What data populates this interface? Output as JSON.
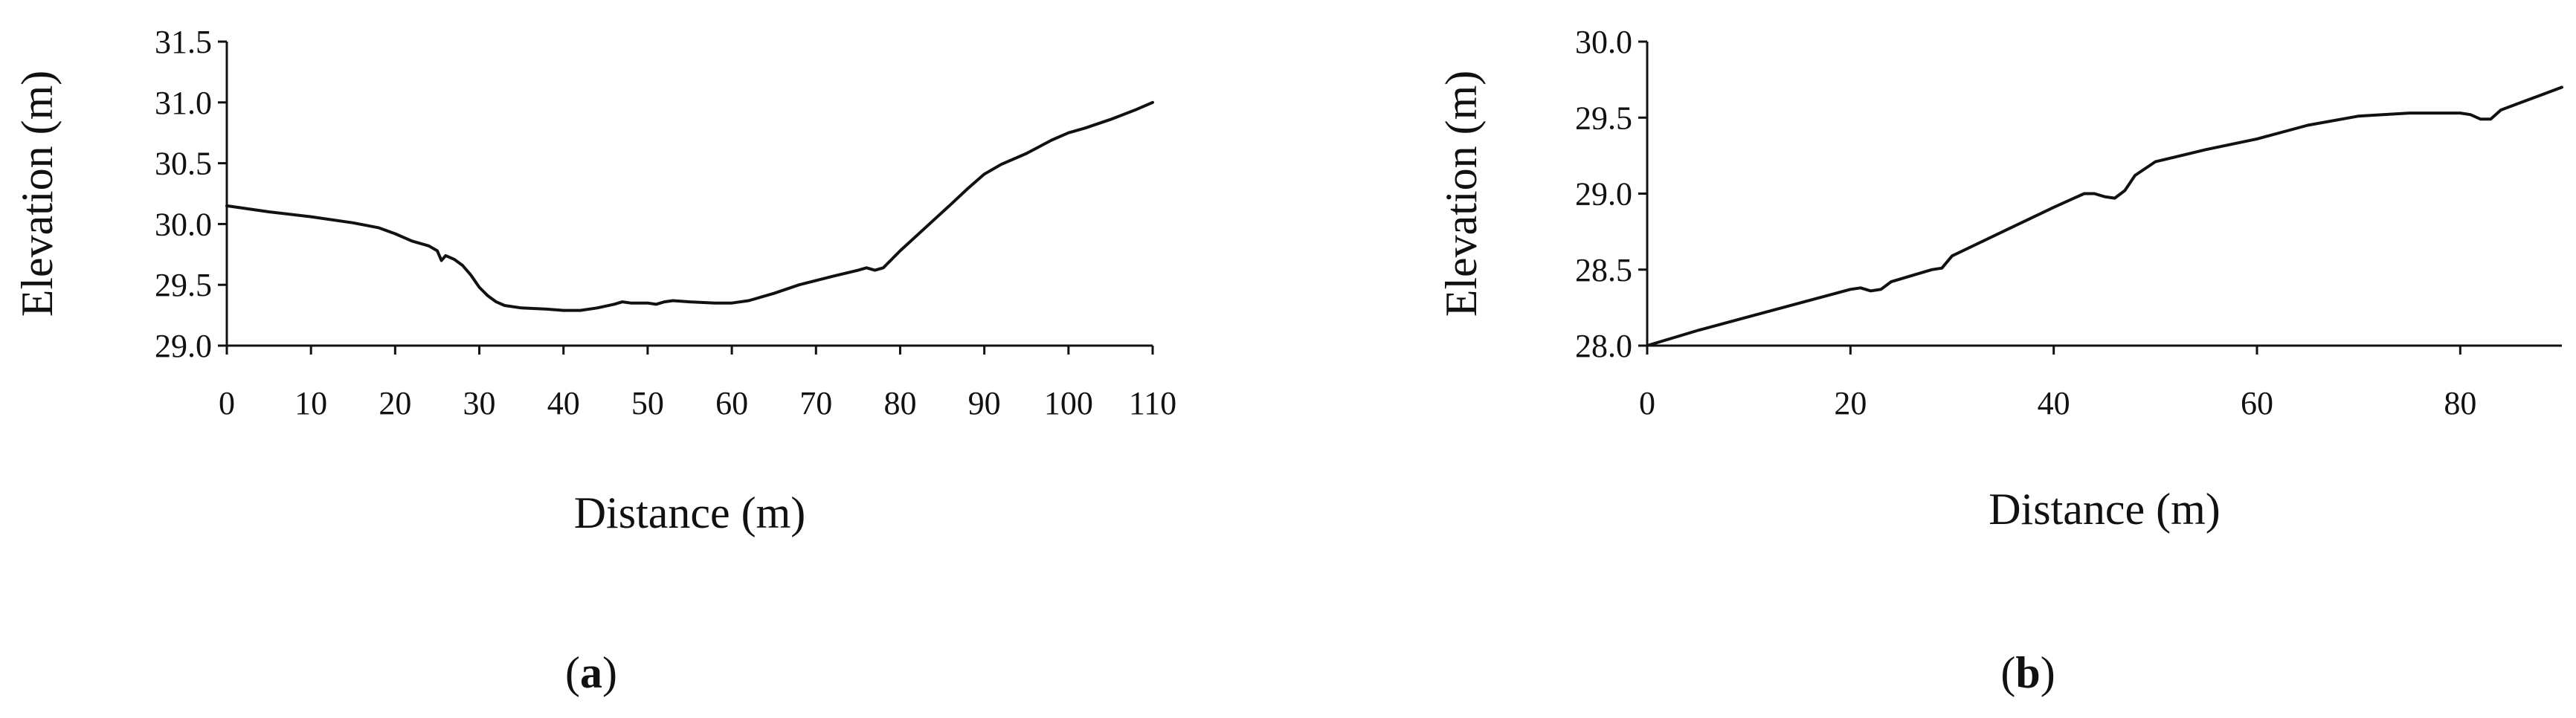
{
  "chart_data": [
    {
      "type": "line",
      "panel_label": "a",
      "xlabel": "Distance (m)",
      "ylabel": "Elevation (m)",
      "xlim": [
        0,
        110
      ],
      "ylim": [
        29.0,
        31.5
      ],
      "x_ticks": [
        "0",
        "10",
        "20",
        "30",
        "40",
        "50",
        "60",
        "70",
        "80",
        "90",
        "100",
        "110"
      ],
      "y_ticks": [
        "29.0",
        "29.5",
        "30.0",
        "30.5",
        "31.0",
        "31.5"
      ],
      "grid": false,
      "series": [
        {
          "x": [
            0,
            5,
            10,
            15,
            18,
            20,
            22,
            24,
            25,
            25.5,
            26,
            27,
            28,
            29,
            30,
            31,
            32,
            33,
            35,
            38,
            40,
            42,
            44,
            46,
            47,
            48,
            49,
            50,
            51,
            52,
            53,
            55,
            58,
            60,
            62,
            65,
            68,
            72,
            75,
            76,
            77,
            78,
            80,
            83,
            86,
            88,
            90,
            92,
            95,
            98,
            100,
            102,
            105,
            108,
            110
          ],
          "y": [
            30.15,
            30.1,
            30.06,
            30.01,
            29.97,
            29.92,
            29.86,
            29.82,
            29.78,
            29.7,
            29.74,
            29.71,
            29.66,
            29.58,
            29.48,
            29.41,
            29.36,
            29.33,
            29.31,
            29.3,
            29.29,
            29.29,
            29.31,
            29.34,
            29.36,
            29.35,
            29.35,
            29.35,
            29.34,
            29.36,
            29.37,
            29.36,
            29.35,
            29.35,
            29.37,
            29.43,
            29.5,
            29.57,
            29.62,
            29.64,
            29.62,
            29.64,
            29.78,
            29.97,
            30.16,
            30.29,
            30.41,
            30.49,
            30.58,
            30.69,
            30.75,
            30.79,
            30.86,
            30.94,
            31.0
          ]
        }
      ]
    },
    {
      "type": "line",
      "panel_label": "b",
      "xlabel": "Distance (m)",
      "ylabel": "Elevation (m)",
      "xlim": [
        0,
        90
      ],
      "ylim": [
        28.0,
        30.0
      ],
      "x_ticks": [
        "0",
        "20",
        "40",
        "60",
        "80"
      ],
      "y_ticks": [
        "28.0",
        "28.5",
        "29.0",
        "29.5",
        "30.0"
      ],
      "grid": false,
      "series": [
        {
          "x": [
            0,
            5,
            10,
            15,
            20,
            21,
            22,
            23,
            24,
            26,
            28,
            29,
            30,
            35,
            40,
            42,
            43,
            44,
            45,
            46,
            47,
            48,
            50,
            55,
            60,
            65,
            70,
            75,
            80,
            81,
            82,
            83,
            84,
            86,
            88,
            90
          ],
          "y": [
            28.0,
            28.1,
            28.19,
            28.28,
            28.37,
            28.38,
            28.36,
            28.37,
            28.42,
            28.46,
            28.5,
            28.51,
            28.59,
            28.75,
            28.91,
            28.97,
            29.0,
            29.0,
            28.98,
            28.97,
            29.02,
            29.12,
            29.21,
            29.29,
            29.36,
            29.45,
            29.51,
            29.53,
            29.53,
            29.52,
            29.49,
            29.49,
            29.55,
            29.6,
            29.65,
            29.7
          ]
        }
      ]
    }
  ]
}
